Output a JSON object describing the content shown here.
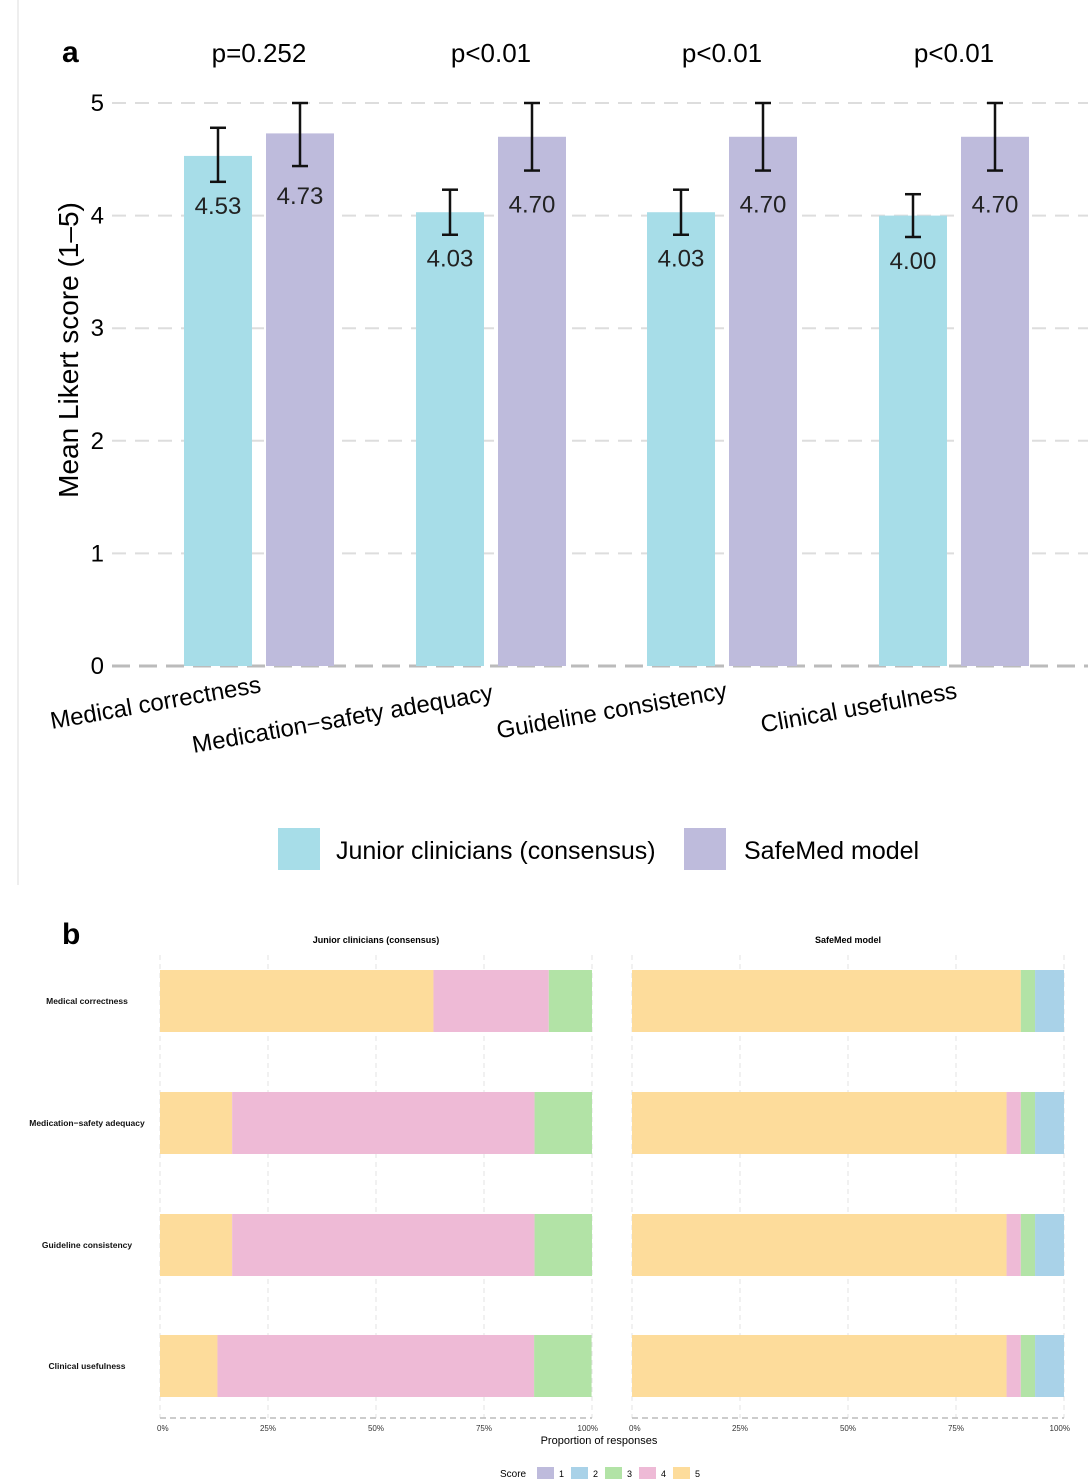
{
  "chart_data": [
    {
      "type": "bar",
      "panel_label": "a",
      "title": "",
      "ylabel": "Mean Likert score (1–5)",
      "xlabel": "",
      "ylim": [
        0,
        5
      ],
      "yticks": [
        "0",
        "1",
        "2",
        "3",
        "4",
        "5"
      ],
      "grid": true,
      "legend_position": "bottom",
      "categories": [
        "Medical correctness",
        "Medication−safety adequacy",
        "Guideline consistency",
        "Clinical usefulness"
      ],
      "p_values": [
        "p=0.252",
        "p<0.01",
        "p<0.01",
        "p<0.01"
      ],
      "series": [
        {
          "name": "Junior clinicians (consensus)",
          "color": "#a7dde8",
          "values": [
            4.53,
            4.03,
            4.03,
            4.0
          ],
          "labels": [
            "4.53",
            "4.03",
            "4.03",
            "4.00"
          ],
          "err_low": [
            4.3,
            3.83,
            3.83,
            3.81
          ],
          "err_high": [
            4.78,
            4.23,
            4.23,
            4.19
          ]
        },
        {
          "name": "SafeMed model",
          "color": "#bebbdc",
          "values": [
            4.73,
            4.7,
            4.7,
            4.7
          ],
          "labels": [
            "4.73",
            "4.70",
            "4.70",
            "4.70"
          ],
          "err_low": [
            4.44,
            4.4,
            4.4,
            4.4
          ],
          "err_high": [
            5.0,
            5.0,
            5.0,
            5.0
          ]
        }
      ]
    },
    {
      "type": "bar",
      "orientation": "horizontal-stacked",
      "panel_label": "b",
      "xlabel": "Proportion of responses",
      "xticks": [
        "0%",
        "25%",
        "50%",
        "75%",
        "100%"
      ],
      "xlim": [
        0,
        1
      ],
      "categories": [
        "Medical correctness",
        "Medication−safety adequacy",
        "Guideline consistency",
        "Clinical usefulness"
      ],
      "legend_title": "Score",
      "legend_position": "bottom",
      "scores": [
        {
          "label": "1",
          "color": "#bebbdc"
        },
        {
          "label": "2",
          "color": "#a9d2e8"
        },
        {
          "label": "3",
          "color": "#b2e3a6"
        },
        {
          "label": "4",
          "color": "#eebad6"
        },
        {
          "label": "5",
          "color": "#fddc9b"
        }
      ],
      "panels": [
        {
          "title": "Junior clinicians (consensus)",
          "proportions": [
            {
              "5": 0.633,
              "4": 0.267,
              "3": 0.1,
              "2": 0,
              "1": 0
            },
            {
              "5": 0.167,
              "4": 0.7,
              "3": 0.133,
              "2": 0,
              "1": 0
            },
            {
              "5": 0.167,
              "4": 0.7,
              "3": 0.133,
              "2": 0,
              "1": 0
            },
            {
              "5": 0.133,
              "4": 0.733,
              "3": 0.133,
              "2": 0,
              "1": 0
            }
          ]
        },
        {
          "title": "SafeMed model",
          "proportions": [
            {
              "5": 0.9,
              "4": 0,
              "3": 0.033,
              "2": 0.067,
              "1": 0
            },
            {
              "5": 0.867,
              "4": 0.033,
              "3": 0.033,
              "2": 0.067,
              "1": 0
            },
            {
              "5": 0.867,
              "4": 0.033,
              "3": 0.033,
              "2": 0.067,
              "1": 0
            },
            {
              "5": 0.867,
              "4": 0.033,
              "3": 0.033,
              "2": 0.067,
              "1": 0
            }
          ]
        }
      ]
    }
  ]
}
